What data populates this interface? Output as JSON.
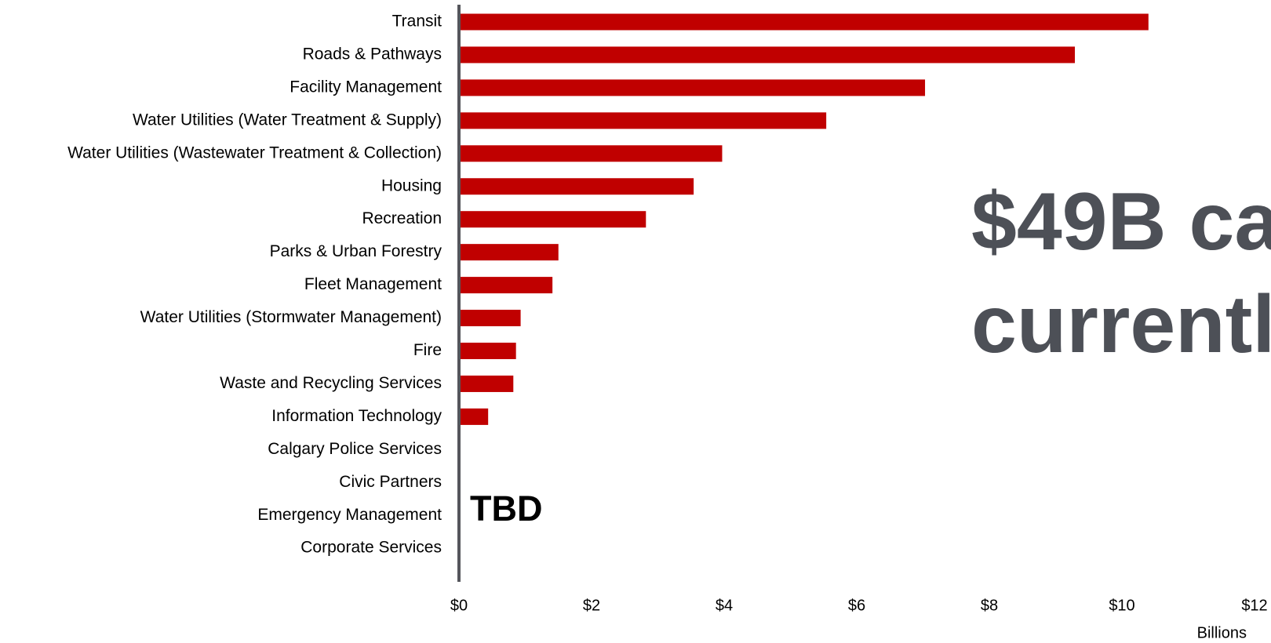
{
  "chart_data": {
    "type": "bar",
    "orientation": "horizontal",
    "categories": [
      "Transit",
      "Roads & Pathways",
      "Facility Management",
      "Water Utilities (Water Treatment & Supply)",
      "Water Utilities (Wastewater Treatment & Collection)",
      "Housing",
      "Recreation",
      "Parks & Urban Forestry",
      "Fleet Management",
      "Water Utilities (Stormwater Management)",
      "Fire",
      "Waste and Recycling Services",
      "Information Technology",
      "Calgary Police Services",
      "Civic Partners",
      "Emergency Management",
      "Corporate Services"
    ],
    "values": [
      10.4,
      9.29,
      7.03,
      5.54,
      3.97,
      3.54,
      2.82,
      1.5,
      1.41,
      0.93,
      0.86,
      0.82,
      0.44,
      null,
      null,
      null,
      null
    ],
    "color": "#c00000",
    "xlim": [
      0,
      12
    ],
    "xticks": [
      {
        "value": 0,
        "label": "$0"
      },
      {
        "value": 2,
        "label": "$2"
      },
      {
        "value": 4,
        "label": "$4"
      },
      {
        "value": 6,
        "label": "$6"
      },
      {
        "value": 8,
        "label": "$8"
      },
      {
        "value": 10,
        "label": "$10"
      },
      {
        "value": 12,
        "label": "$12"
      }
    ],
    "x_label": "Billions",
    "annotations": [
      "TBD",
      "$49B ca",
      "currentl"
    ],
    "grid": false
  }
}
